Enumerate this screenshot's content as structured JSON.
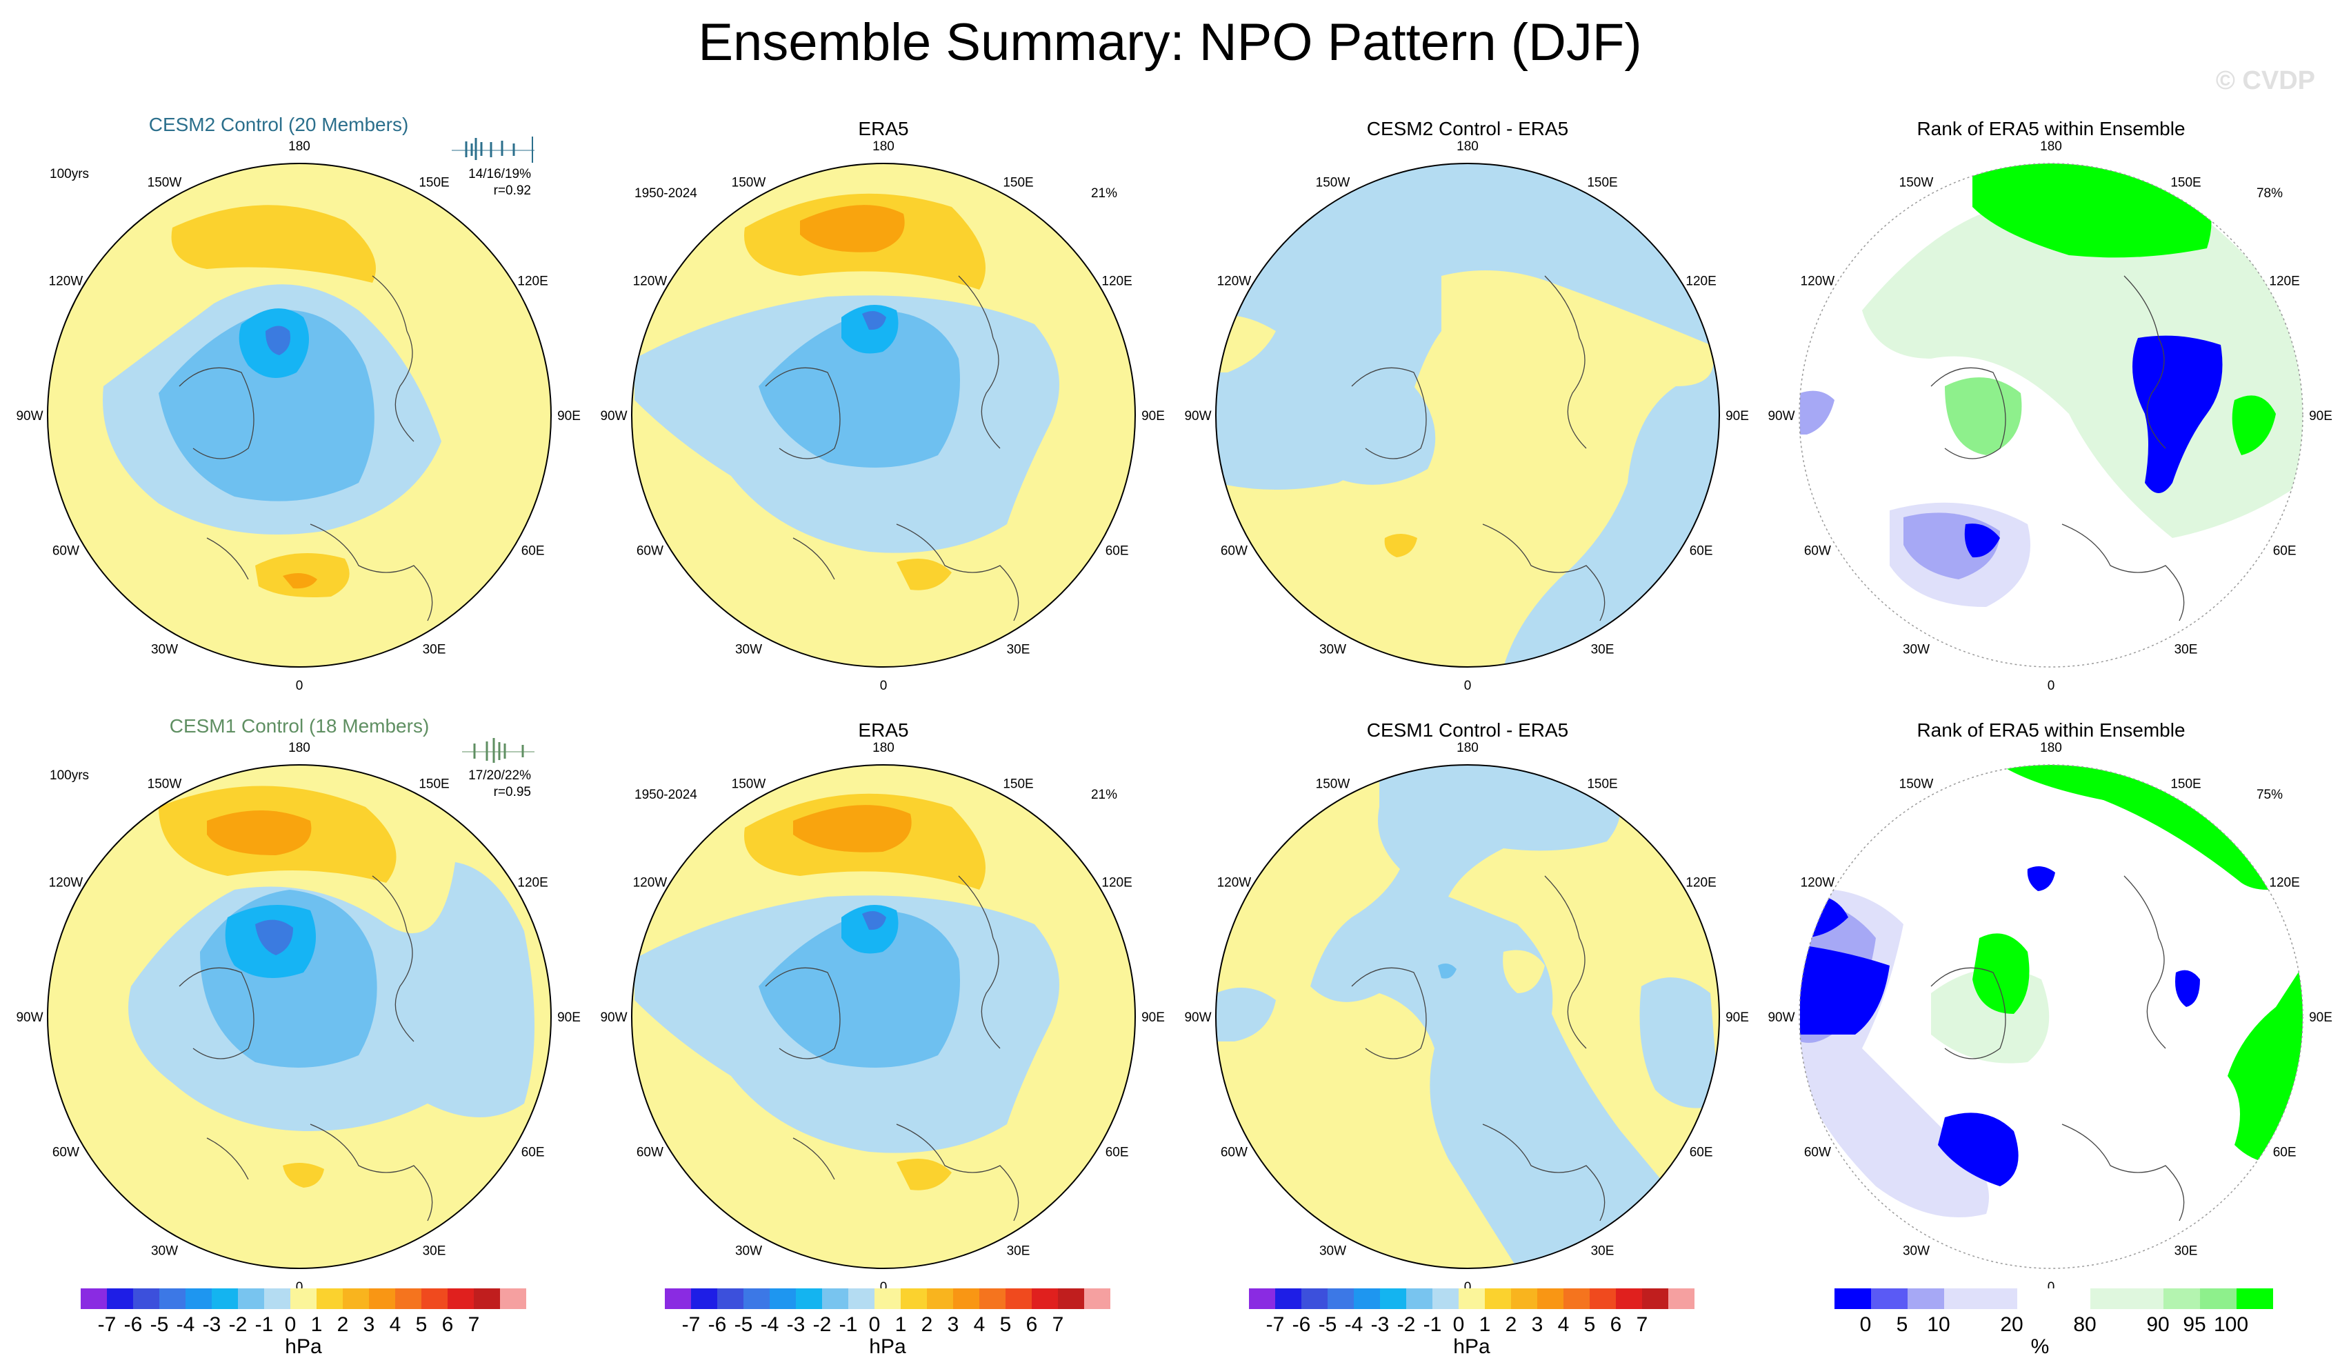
{
  "title": "Ensemble Summary: NPO Pattern (DJF)",
  "watermark": "© CVDP",
  "colors": {
    "land": "#fbf59a",
    "neg1": "#b4dcf2",
    "neg2": "#6ec0f0",
    "neg3": "#16b4f4",
    "neg4": "#3b7be0",
    "pos1": "#fbd22e",
    "pos2": "#f9a40e",
    "rank_green_light": "#dff7de",
    "rank_green_mid": "#8ef08c",
    "rank_green": "#00ff00",
    "rank_blue": "#0000ff",
    "rank_blue_mid": "#a6a8f5",
    "rank_blue_light": "#dfe0fa",
    "coast": "#444444"
  },
  "chart_data": [
    {
      "type": "heatmap",
      "panel": "r1c1",
      "title": "CESM2 Control (20 Members)",
      "title_color": "#2b6f8c",
      "left_label": "100yrs",
      "right_labels": [
        "14/16/19%",
        "r=0.92"
      ],
      "units": "hPa"
    },
    {
      "type": "heatmap",
      "panel": "r1c2",
      "title": "ERA5",
      "left_label": "1950-2024",
      "right_labels": [
        "21%"
      ],
      "units": "hPa"
    },
    {
      "type": "heatmap",
      "panel": "r1c3",
      "title": "CESM2 Control - ERA5",
      "units": "hPa"
    },
    {
      "type": "heatmap",
      "panel": "r1c4",
      "title": "Rank of ERA5 within Ensemble",
      "right_labels": [
        "78%"
      ],
      "units": "%"
    },
    {
      "type": "heatmap",
      "panel": "r2c1",
      "title": "CESM1 Control (18 Members)",
      "title_color": "#5f8f62",
      "left_label": "100yrs",
      "right_labels": [
        "17/20/22%",
        "r=0.95"
      ],
      "units": "hPa"
    },
    {
      "type": "heatmap",
      "panel": "r2c2",
      "title": "ERA5",
      "left_label": "1950-2024",
      "right_labels": [
        "21%"
      ],
      "units": "hPa"
    },
    {
      "type": "heatmap",
      "panel": "r2c3",
      "title": "CESM1 Control - ERA5",
      "units": "hPa"
    },
    {
      "type": "heatmap",
      "panel": "r2c4",
      "title": "Rank of ERA5 within Ensemble",
      "right_labels": [
        "75%"
      ],
      "units": "%"
    }
  ],
  "map_labels": [
    "180",
    "150E",
    "120E",
    "90E",
    "60E",
    "30E",
    "0",
    "30W",
    "60W",
    "90W",
    "120W",
    "150W"
  ],
  "colorbar_hpa": {
    "colors": [
      "#8a2be2",
      "#1e1ee6",
      "#3c50dc",
      "#3c78e6",
      "#1e96f0",
      "#14b4f0",
      "#78c4ef",
      "#b4dcf2",
      "#fbf59a",
      "#fbd22e",
      "#f9b41e",
      "#f99614",
      "#f5741e",
      "#f04a1e",
      "#e0201e",
      "#c01e1e",
      "#f5a0a0"
    ],
    "tick_labels": [
      "-7",
      "-6",
      "-5",
      "-4",
      "-3",
      "-2",
      "-1",
      "0",
      "1",
      "2",
      "3",
      "4",
      "5",
      "6",
      "7"
    ],
    "units": "hPa"
  },
  "colorbar_rank": {
    "colors": [
      "#0000ff",
      "#5a5af5",
      "#a6a8f5",
      "#dfe0fa",
      "#dfe0fa",
      "#ffffff",
      "#ffffff",
      "#dff7de",
      "#dff7de",
      "#b4f4b0",
      "#8ef08c",
      "#00ff00"
    ],
    "tick_labels": [
      "0",
      "5",
      "10",
      "20",
      "80",
      "90",
      "95",
      "100"
    ],
    "units": "%"
  }
}
